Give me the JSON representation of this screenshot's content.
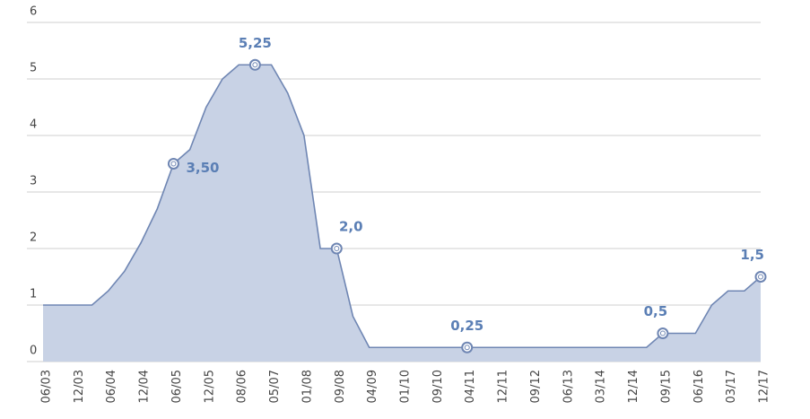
{
  "chart_data": {
    "type": "area",
    "categories": [
      "06/03",
      null,
      "12/03",
      null,
      "06/04",
      null,
      "12/04",
      null,
      "06/05",
      null,
      "12/05",
      null,
      "08/06",
      null,
      "05/07",
      null,
      "01/08",
      null,
      "09/08",
      null,
      "04/09",
      null,
      "01/10",
      null,
      "09/10",
      null,
      "04/11",
      null,
      "12/11",
      null,
      "09/12",
      null,
      "06/13",
      null,
      "03/14",
      null,
      "12/14",
      null,
      "09/15",
      null,
      "06/16",
      null,
      "03/17",
      null,
      "12/17"
    ],
    "values": [
      1,
      1,
      1,
      1,
      1.25,
      1.6,
      2.1,
      2.7,
      3.5,
      3.75,
      4.5,
      5.0,
      5.25,
      5.25,
      5.25,
      4.75,
      4.0,
      2.0,
      2.0,
      0.8,
      0.25,
      0.25,
      0.25,
      0.25,
      0.25,
      0.25,
      0.25,
      0.25,
      0.25,
      0.25,
      0.25,
      0.25,
      0.25,
      0.25,
      0.25,
      0.25,
      0.25,
      0.25,
      0.5,
      0.5,
      0.5,
      1.0,
      1.25,
      1.25,
      1.5
    ],
    "value_labels": [
      null,
      null,
      null,
      null,
      null,
      null,
      null,
      null,
      "3,50",
      null,
      null,
      null,
      null,
      "5,25",
      null,
      null,
      null,
      null,
      "2,0",
      null,
      null,
      null,
      null,
      null,
      null,
      null,
      "0,25",
      null,
      null,
      null,
      null,
      null,
      null,
      null,
      null,
      null,
      null,
      null,
      "0,5",
      null,
      null,
      null,
      null,
      null,
      "1,5"
    ],
    "color": "#6f86b3",
    "fill": "#c8d2e5",
    "label_color": "#5b7fb5",
    "ylim": [
      0,
      6
    ],
    "yticks": [
      0,
      1,
      2,
      3,
      4,
      5,
      6
    ],
    "grid": true
  }
}
